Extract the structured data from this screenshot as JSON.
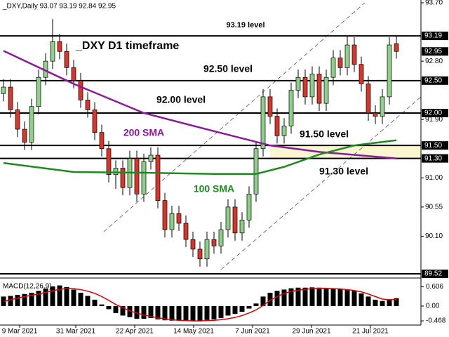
{
  "chart_data": {
    "type": "candlestick",
    "header": "_DXY,Daily  93.07 93.19 92.84 92.95",
    "annotations": [
      "_DXY D1 timeframe"
    ],
    "ylim": [
      89.52,
      93.7
    ],
    "yticks": [
      {
        "value": 93.7,
        "label": "93.70"
      },
      {
        "value": 92.8,
        "label": "92.80"
      },
      {
        "value": 91.9,
        "label": "91.90"
      },
      {
        "value": 91.0,
        "label": "91.00"
      },
      90.55,
      {
        "value": 90.1,
        "label": "90.10"
      }
    ],
    "xticks": [
      {
        "value": 2.3,
        "label": "9 Mar 2021"
      },
      {
        "value": 10.3,
        "label": "31 Mar 2021"
      },
      {
        "value": 18.7,
        "label": "22 Apr 2021"
      },
      {
        "value": 27.1,
        "label": "14 May 2021"
      },
      {
        "value": 35.5,
        "label": "7 Jun 2021"
      },
      {
        "value": 43.9,
        "label": "29 Jun 2021"
      },
      {
        "value": 52.3,
        "label": "21 Jul 2021"
      }
    ],
    "up_color": "#8fd08a",
    "down_color": "#d9352b",
    "open": [
      92.3,
      92.4,
      92.05,
      91.75,
      91.55,
      92.1,
      92.55,
      92.8,
      93.1,
      92.95,
      92.7,
      92.5,
      92.2,
      92.05,
      91.7,
      91.45,
      91.05,
      91.15,
      90.85,
      91.3,
      90.75,
      91.25,
      91.35,
      90.65,
      90.2,
      90.45,
      90.3,
      90.05,
      89.9,
      89.75,
      90.05,
      89.95,
      90.2,
      90.55,
      90.15,
      90.35,
      90.75,
      91.45,
      92.25,
      91.95,
      91.65,
      91.8,
      92.35,
      92.55,
      92.25,
      92.6,
      92.15,
      92.55,
      92.85,
      92.7,
      93.05,
      92.75,
      92.45,
      92.0,
      91.95,
      92.25,
      93.07
    ],
    "high": [
      92.52,
      92.52,
      92.17,
      91.87,
      92.22,
      92.67,
      92.92,
      93.45,
      93.22,
      93.07,
      92.82,
      92.62,
      92.32,
      92.17,
      91.82,
      91.57,
      91.27,
      91.27,
      91.42,
      91.42,
      91.37,
      91.47,
      91.47,
      90.77,
      90.57,
      90.57,
      90.42,
      90.17,
      90.02,
      90.17,
      90.17,
      90.32,
      90.67,
      90.67,
      90.47,
      90.87,
      91.57,
      92.37,
      92.37,
      92.07,
      91.92,
      92.47,
      92.67,
      92.67,
      92.72,
      92.72,
      92.67,
      92.97,
      92.97,
      93.19,
      93.17,
      92.87,
      92.57,
      92.12,
      92.37,
      93.17,
      93.19
    ],
    "low": [
      92.18,
      91.93,
      91.63,
      91.43,
      91.43,
      91.98,
      92.43,
      92.68,
      92.83,
      92.58,
      92.38,
      92.08,
      91.93,
      91.58,
      91.33,
      90.93,
      90.83,
      90.73,
      90.73,
      90.63,
      90.63,
      91.13,
      90.53,
      90.08,
      90.08,
      90.18,
      89.93,
      89.78,
      89.63,
      89.63,
      89.83,
      89.83,
      90.08,
      90.03,
      90.03,
      90.23,
      90.63,
      91.33,
      91.83,
      91.53,
      91.53,
      91.68,
      92.23,
      92.13,
      92.13,
      92.03,
      92.03,
      92.43,
      92.58,
      92.58,
      92.63,
      92.33,
      91.88,
      91.83,
      91.83,
      92.13,
      92.84
    ],
    "close": [
      92.4,
      92.05,
      91.75,
      91.55,
      92.1,
      92.55,
      92.8,
      93.1,
      92.95,
      92.7,
      92.5,
      92.2,
      92.05,
      91.7,
      91.45,
      91.05,
      91.15,
      90.85,
      91.3,
      90.75,
      91.25,
      91.35,
      90.65,
      90.2,
      90.45,
      90.3,
      90.05,
      89.9,
      89.75,
      90.05,
      89.95,
      90.2,
      90.55,
      90.15,
      90.35,
      90.75,
      91.45,
      92.25,
      91.95,
      91.65,
      91.8,
      92.35,
      92.55,
      92.25,
      92.6,
      92.15,
      92.55,
      92.85,
      92.7,
      93.05,
      92.75,
      92.45,
      92.0,
      91.95,
      92.25,
      93.05,
      92.95
    ],
    "series": [
      {
        "name": "200 SMA",
        "color": "#8b1a9b",
        "x": [
          0,
          10,
          20,
          30,
          38,
          45,
          56
        ],
        "values": [
          92.96,
          92.45,
          92.0,
          91.72,
          91.5,
          91.4,
          91.3
        ]
      },
      {
        "name": "100 SMA",
        "color": "#1f8a1f",
        "x": [
          0,
          10,
          20,
          30,
          36,
          40,
          45,
          50,
          56
        ],
        "values": [
          91.23,
          91.09,
          91.08,
          91.06,
          91.06,
          91.17,
          91.36,
          91.5,
          91.58
        ]
      }
    ],
    "levels": [
      {
        "value": 93.19,
        "label": "93.19",
        "note": "93.19 level"
      },
      {
        "value": 92.5,
        "label": "92.50",
        "note": "92.50 level"
      },
      {
        "value": 92.0,
        "label": "92.00",
        "note": "92.00 level"
      },
      {
        "value": 91.5,
        "label": "91.50",
        "note": "91.50 level"
      },
      {
        "value": 91.3,
        "label": "91.30",
        "note": "91.30 level"
      },
      {
        "value": 89.52,
        "label": "89.52"
      }
    ],
    "macd": {
      "title": "MACD(12,26,9)",
      "ylim": [
        -0.6,
        0.84
      ],
      "yticks": [
        0.606,
        {
          "value": 0,
          "label": "0.00"
        },
        -0.468
      ],
      "histogram": [
        0.3,
        0.32,
        0.35,
        0.38,
        0.42,
        0.48,
        0.55,
        0.62,
        0.65,
        0.6,
        0.52,
        0.42,
        0.32,
        0.2,
        0.05,
        -0.1,
        -0.22,
        -0.3,
        -0.35,
        -0.4,
        -0.4,
        -0.38,
        -0.42,
        -0.45,
        -0.46,
        -0.46,
        -0.47,
        -0.47,
        -0.46,
        -0.44,
        -0.42,
        -0.38,
        -0.3,
        -0.25,
        -0.18,
        -0.08,
        0.08,
        0.3,
        0.42,
        0.48,
        0.52,
        0.56,
        0.58,
        0.58,
        0.59,
        0.58,
        0.56,
        0.55,
        0.54,
        0.52,
        0.48,
        0.4,
        0.3,
        0.2,
        0.16,
        0.2,
        0.25
      ],
      "signal": [
        0.15,
        0.2,
        0.25,
        0.3,
        0.34,
        0.38,
        0.43,
        0.48,
        0.53,
        0.55,
        0.55,
        0.52,
        0.47,
        0.4,
        0.3,
        0.18,
        0.05,
        -0.05,
        -0.15,
        -0.22,
        -0.28,
        -0.33,
        -0.37,
        -0.4,
        -0.43,
        -0.45,
        -0.46,
        -0.47,
        -0.47,
        -0.46,
        -0.45,
        -0.43,
        -0.4,
        -0.36,
        -0.3,
        -0.22,
        -0.12,
        0.02,
        0.18,
        0.3,
        0.4,
        0.46,
        0.5,
        0.53,
        0.55,
        0.56,
        0.56,
        0.55,
        0.54,
        0.52,
        0.49,
        0.45,
        0.38,
        0.3,
        0.22,
        0.2,
        0.21
      ],
      "signal_color": "#e00000"
    }
  }
}
